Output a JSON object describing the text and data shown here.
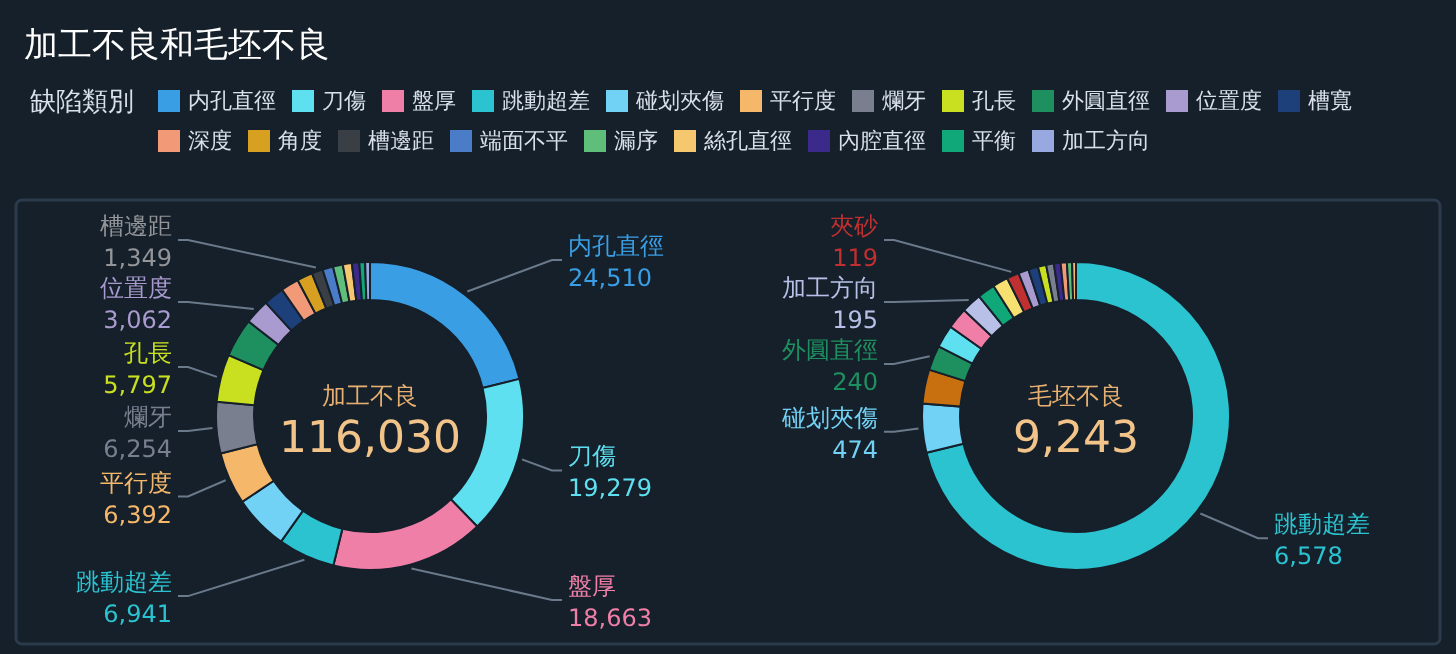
{
  "chart_data": [
    {
      "type": "donut",
      "title": "加工不良和毛坯不良",
      "legend_title": "缺陷類別",
      "legend": "top",
      "categories": [
        "内孔直徑",
        "刀傷",
        "盤厚",
        "跳動超差",
        "碰划夾傷",
        "平行度",
        "爛牙",
        "孔長",
        "外圓直徑",
        "位置度",
        "槽寬",
        "深度",
        "角度",
        "槽邊距",
        "端面不平",
        "漏序",
        "絲孔直徑",
        "內腔直徑",
        "平衡",
        "加工方向"
      ],
      "values": [
        24510,
        19279,
        18663,
        6941,
        6700,
        6392,
        6254,
        5797,
        4700,
        3062,
        2500,
        2200,
        1900,
        1349,
        1300,
        1200,
        1100,
        900,
        700,
        583
      ],
      "colors": [
        "#3a9ee4",
        "#5ee0f0",
        "#f07fa8",
        "#2bc3d0",
        "#72d2f5",
        "#f5b86a",
        "#7a7f90",
        "#c8e020",
        "#1e9060",
        "#a99bd0",
        "#1d3f7a",
        "#f29a78",
        "#d8a020",
        "#3a3f45",
        "#4a7cc8",
        "#5fbf7a",
        "#f5c870",
        "#3b2a8a",
        "#10a878",
        "#98a8e0"
      ],
      "value_labels": [
        "24,510",
        "19,279",
        "18,663",
        "6,941",
        null,
        "6,392",
        "6,254",
        "5,797",
        null,
        "3,062",
        null,
        null,
        null,
        "1,349",
        null,
        null,
        null,
        null,
        null,
        null
      ],
      "annotations": [
        "加工不良",
        "116,030"
      ]
    },
    {
      "type": "donut",
      "categories": [
        "跳動超差",
        "碰划夾傷",
        null,
        "外圓直徑",
        null,
        null,
        "加工方向",
        null,
        null,
        "夾砂",
        null,
        null,
        null,
        null,
        null,
        null,
        null,
        null
      ],
      "values": [
        6578,
        474,
        330,
        240,
        220,
        205,
        195,
        170,
        150,
        119,
        100,
        95,
        80,
        75,
        65,
        60,
        50,
        37
      ],
      "colors": [
        "#2bc3d0",
        "#72d2f5",
        "#c87010",
        "#1e9060",
        "#5ee0f0",
        "#f07fa8",
        "#b8c0e8",
        "#10a878",
        "#f5e070",
        "#c03030",
        "#a99bd0",
        "#1d3f7a",
        "#c8e020",
        "#7a7f90",
        "#3b2a8a",
        "#f29a78",
        "#5fbf7a",
        "#f5b86a"
      ],
      "value_labels": [
        "6,578",
        "474",
        null,
        "240",
        null,
        null,
        "195",
        null,
        null,
        "119",
        null,
        null,
        null,
        null,
        null,
        null,
        null,
        null
      ],
      "annotations": [
        "毛坯不良",
        "9,243"
      ]
    }
  ]
}
